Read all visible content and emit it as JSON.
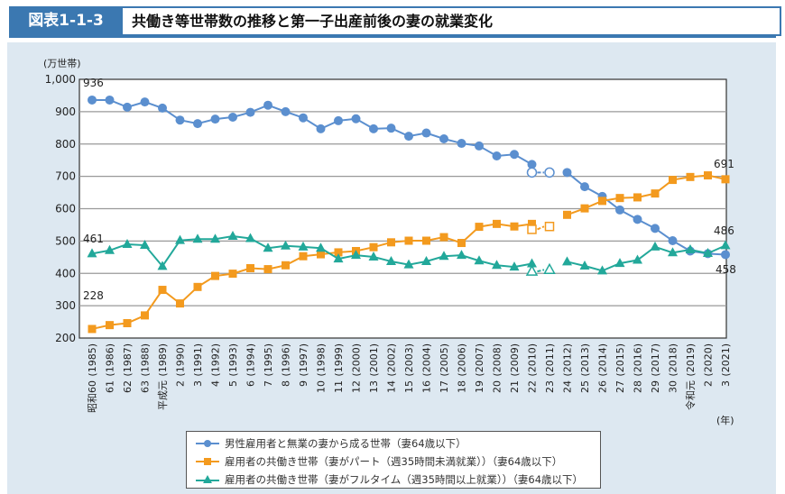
{
  "header": {
    "figure_number": "図表1-1-3",
    "title": "共働き等世帯数の推移と第一子出産前後の妻の就業変化"
  },
  "chart_data": {
    "type": "line",
    "title": "共働き等世帯数の推移と第一子出産前後の妻の就業変化",
    "ylabel": "(万世帯)",
    "xlabel": "(年)",
    "ylim": [
      200,
      1000
    ],
    "yticks": [
      "200",
      "300",
      "400",
      "500",
      "600",
      "700",
      "800",
      "900",
      "1,000"
    ],
    "grid": true,
    "legend_position": "bottom",
    "x": [
      1985,
      1986,
      1987,
      1988,
      1989,
      1990,
      1991,
      1992,
      1993,
      1994,
      1995,
      1996,
      1997,
      1998,
      1999,
      2000,
      2001,
      2002,
      2003,
      2004,
      2005,
      2006,
      2007,
      2008,
      2009,
      2010,
      2011,
      2012,
      2013,
      2014,
      2015,
      2016,
      2017,
      2018,
      2019,
      2020,
      2021
    ],
    "x_labels": [
      {
        "era": "昭和60",
        "year": "(1985)"
      },
      {
        "era": "61",
        "year": "(1986)"
      },
      {
        "era": "62",
        "year": "(1987)"
      },
      {
        "era": "63",
        "year": "(1988)"
      },
      {
        "era": "平成元",
        "year": "(1989)"
      },
      {
        "era": "2",
        "year": "(1990)"
      },
      {
        "era": "3",
        "year": "(1991)"
      },
      {
        "era": "4",
        "year": "(1992)"
      },
      {
        "era": "5",
        "year": "(1993)"
      },
      {
        "era": "6",
        "year": "(1994)"
      },
      {
        "era": "7",
        "year": "(1995)"
      },
      {
        "era": "8",
        "year": "(1996)"
      },
      {
        "era": "9",
        "year": "(1997)"
      },
      {
        "era": "10",
        "year": "(1998)"
      },
      {
        "era": "11",
        "year": "(1999)"
      },
      {
        "era": "12",
        "year": "(2000)"
      },
      {
        "era": "13",
        "year": "(2001)"
      },
      {
        "era": "14",
        "year": "(2002)"
      },
      {
        "era": "15",
        "year": "(2003)"
      },
      {
        "era": "16",
        "year": "(2004)"
      },
      {
        "era": "17",
        "year": "(2005)"
      },
      {
        "era": "18",
        "year": "(2006)"
      },
      {
        "era": "19",
        "year": "(2007)"
      },
      {
        "era": "20",
        "year": "(2008)"
      },
      {
        "era": "21",
        "year": "(2009)"
      },
      {
        "era": "22",
        "year": "(2010)"
      },
      {
        "era": "23",
        "year": "(2011)"
      },
      {
        "era": "24",
        "year": "(2012)"
      },
      {
        "era": "25",
        "year": "(2013)"
      },
      {
        "era": "26",
        "year": "(2014)"
      },
      {
        "era": "27",
        "year": "(2015)"
      },
      {
        "era": "28",
        "year": "(2016)"
      },
      {
        "era": "29",
        "year": "(2017)"
      },
      {
        "era": "30",
        "year": "(2018)"
      },
      {
        "era": "令和元",
        "year": "(2019)"
      },
      {
        "era": "2",
        "year": "(2020)"
      },
      {
        "era": "3",
        "year": "(2021)"
      }
    ],
    "series": [
      {
        "name": "男性雇用者と無業の妻から成る世帯（妻64歳以下）",
        "color": "#5b8fcf",
        "marker": "circle",
        "values": [
          936,
          936,
          914,
          930,
          911,
          874,
          863,
          877,
          883,
          898,
          920,
          900,
          881,
          847,
          872,
          878,
          847,
          849,
          824,
          834,
          816,
          802,
          794,
          763,
          768,
          737,
          null,
          712,
          668,
          638,
          596,
          567,
          539,
          501,
          469,
          461,
          458
        ],
        "excluding_values": {
          "2010": 712,
          "2011": 712
        },
        "labels": {
          "1985": "936",
          "2021": "458"
        }
      },
      {
        "name": "雇用者の共働き世帯（妻がパート（週35時間未満就業））（妻64歳以下）",
        "color": "#f39a1e",
        "marker": "square",
        "values": [
          228,
          240,
          246,
          270,
          349,
          307,
          358,
          392,
          399,
          416,
          413,
          425,
          453,
          459,
          465,
          469,
          481,
          496,
          501,
          501,
          512,
          494,
          544,
          553,
          545,
          553,
          null,
          581,
          601,
          624,
          633,
          635,
          647,
          689,
          698,
          703,
          691
        ],
        "excluding_values": {
          "2010": 536,
          "2011": 545
        },
        "labels": {
          "1985": "228",
          "2021": "691"
        }
      },
      {
        "name": "雇用者の共働き世帯（妻がフルタイム（週35時間以上就業））（妻64歳以下）",
        "color": "#22a89a",
        "marker": "triangle",
        "values": [
          461,
          471,
          490,
          487,
          422,
          502,
          506,
          506,
          515,
          508,
          478,
          485,
          482,
          478,
          445,
          456,
          451,
          437,
          427,
          437,
          453,
          456,
          439,
          425,
          420,
          430,
          null,
          436,
          423,
          408,
          431,
          441,
          482,
          464,
          473,
          462,
          486
        ],
        "excluding_values": {
          "2010": 406,
          "2011": 411
        },
        "labels": {
          "1985": "461",
          "2021": "486"
        }
      }
    ]
  }
}
